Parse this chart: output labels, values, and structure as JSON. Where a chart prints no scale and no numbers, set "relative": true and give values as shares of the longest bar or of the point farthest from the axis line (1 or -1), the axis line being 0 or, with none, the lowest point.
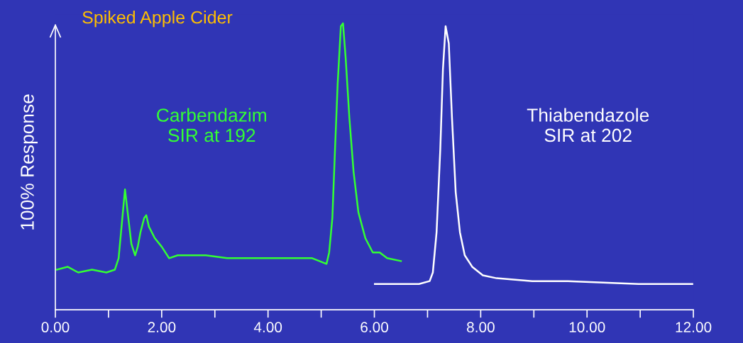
{
  "chart_data": {
    "type": "line",
    "title": "Spiked Apple Cider",
    "ylabel": "100% Response",
    "relative": true,
    "legend": false,
    "grid": false,
    "marker": "none",
    "line_style": "solid",
    "xlim": [
      0,
      12
    ],
    "xticks": [
      {
        "value": 0,
        "label": "0.00"
      },
      {
        "value": 1,
        "label": null
      },
      {
        "value": 2,
        "label": "2.00"
      },
      {
        "value": 3,
        "label": null
      },
      {
        "value": 4,
        "label": "4.00"
      },
      {
        "value": 5,
        "label": null
      },
      {
        "value": 6,
        "label": "6.00"
      },
      {
        "value": 7,
        "label": null
      },
      {
        "value": 8,
        "label": "8.00"
      },
      {
        "value": 9,
        "label": null
      },
      {
        "value": 10,
        "label": "10.00"
      },
      {
        "value": 11,
        "label": null
      },
      {
        "value": 12,
        "label": "12.00"
      }
    ],
    "series": [
      {
        "name": "Carbendazim\nSIR at 192",
        "color": "#33ff33",
        "x": [
          0.03,
          0.23,
          0.43,
          0.69,
          0.96,
          1.12,
          1.19,
          1.26,
          1.31,
          1.36,
          1.43,
          1.5,
          1.55,
          1.6,
          1.67,
          1.71,
          1.76,
          1.87,
          2.0,
          2.14,
          2.3,
          2.56,
          2.83,
          3.23,
          3.77,
          4.3,
          4.83,
          5.1,
          5.15,
          5.21,
          5.26,
          5.31,
          5.37,
          5.41,
          5.46,
          5.53,
          5.61,
          5.7,
          5.83,
          5.97,
          6.1,
          6.24,
          6.5
        ],
        "values": [
          0.14,
          0.15,
          0.13,
          0.14,
          0.13,
          0.14,
          0.18,
          0.32,
          0.42,
          0.34,
          0.23,
          0.19,
          0.22,
          0.27,
          0.32,
          0.33,
          0.29,
          0.25,
          0.22,
          0.18,
          0.19,
          0.19,
          0.19,
          0.18,
          0.18,
          0.18,
          0.18,
          0.16,
          0.2,
          0.32,
          0.56,
          0.79,
          0.99,
          1.0,
          0.88,
          0.67,
          0.48,
          0.34,
          0.25,
          0.2,
          0.2,
          0.18,
          0.17
        ]
      },
      {
        "name": "Thiabendazole\nSIR at 202",
        "color": "#ffffff",
        "x": [
          6.01,
          6.44,
          6.84,
          7.04,
          7.1,
          7.17,
          7.24,
          7.29,
          7.34,
          7.4,
          7.46,
          7.53,
          7.61,
          7.7,
          7.84,
          8.04,
          8.3,
          8.97,
          9.64,
          10.97,
          11.98
        ],
        "values": [
          0.09,
          0.09,
          0.09,
          0.1,
          0.13,
          0.27,
          0.56,
          0.84,
          0.99,
          0.93,
          0.67,
          0.41,
          0.27,
          0.19,
          0.15,
          0.12,
          0.11,
          0.1,
          0.1,
          0.09,
          0.09
        ]
      }
    ]
  }
}
